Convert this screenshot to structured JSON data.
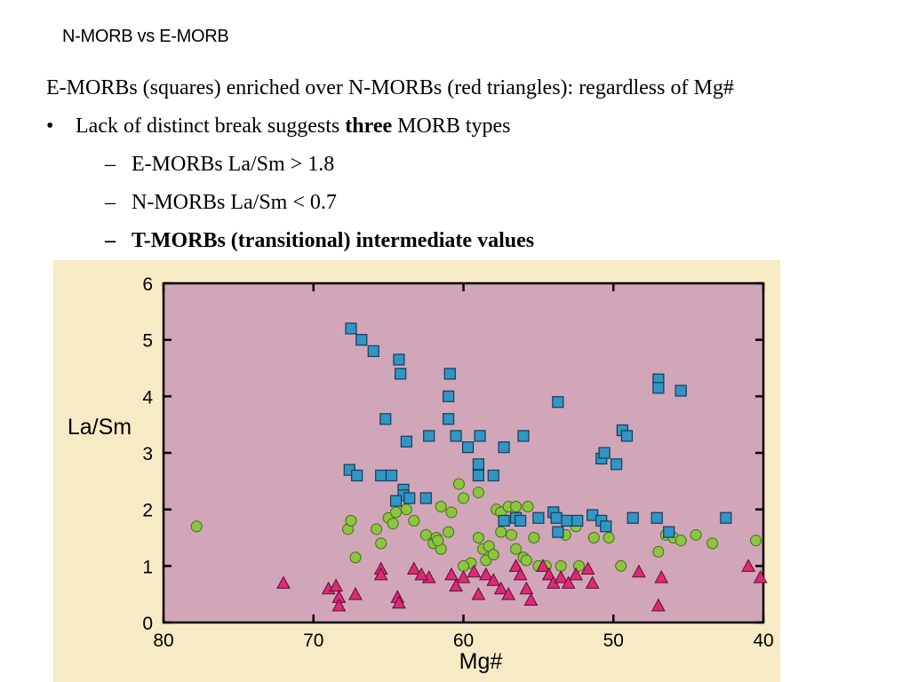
{
  "slide": {
    "title": "N-MORB vs E-MORB",
    "line0": "E-MORBs (squares) enriched over N-MORBs (red triangles): regardless of Mg#",
    "bullet_marker": "•",
    "dash_marker": "–",
    "line1_pre": "Lack of distinct break suggests ",
    "line1_bold": "three",
    "line1_post": " MORB types",
    "line2": "E-MORBs La/Sm > 1.8",
    "line3": "N-MORBs La/Sm < 0.7",
    "line4": "T-MORBs (transitional) intermediate values"
  },
  "colors": {
    "plot_bg": "#d0a6b8",
    "frame_bg": "#f7ebc5",
    "squares": "#2f96c6",
    "circles": "#8cc63e",
    "triangles": "#de2a76"
  },
  "chart_data": {
    "type": "scatter",
    "xlabel": "Mg#",
    "ylabel": "La/Sm",
    "xlim": [
      80,
      40
    ],
    "ylim": [
      0,
      6
    ],
    "xticks": [
      80,
      70,
      60,
      50,
      40
    ],
    "yticks": [
      0,
      1,
      2,
      3,
      4,
      5,
      6
    ],
    "series": [
      {
        "marker": "square",
        "points": [
          [
            67.5,
            5.2
          ],
          [
            66.8,
            5.0
          ],
          [
            66,
            4.8
          ],
          [
            64.3,
            4.65
          ],
          [
            64.2,
            4.4
          ],
          [
            60.9,
            4.4
          ],
          [
            61,
            4.0
          ],
          [
            61,
            3.6
          ],
          [
            65.2,
            3.6
          ],
          [
            63.8,
            3.2
          ],
          [
            62.3,
            3.3
          ],
          [
            60.5,
            3.3
          ],
          [
            59.7,
            3.1
          ],
          [
            58.9,
            3.3
          ],
          [
            59,
            2.8
          ],
          [
            57.3,
            3.1
          ],
          [
            56,
            3.3
          ],
          [
            53.7,
            3.9
          ],
          [
            49.4,
            3.4
          ],
          [
            49.1,
            3.3
          ],
          [
            50.8,
            2.9
          ],
          [
            50.6,
            3.0
          ],
          [
            49.8,
            2.8
          ],
          [
            47,
            4.3
          ],
          [
            47,
            4.15
          ],
          [
            45.5,
            4.1
          ],
          [
            67.6,
            2.7
          ],
          [
            67.1,
            2.6
          ],
          [
            65.5,
            2.6
          ],
          [
            64.8,
            2.6
          ],
          [
            64,
            2.35
          ],
          [
            64,
            2.25
          ],
          [
            63.6,
            2.2
          ],
          [
            62.5,
            2.2
          ],
          [
            64.5,
            2.15
          ],
          [
            59,
            2.6
          ],
          [
            58,
            2.6
          ],
          [
            57.3,
            1.8
          ],
          [
            56.5,
            1.85
          ],
          [
            56.2,
            1.8
          ],
          [
            55,
            1.85
          ],
          [
            54,
            1.95
          ],
          [
            53.8,
            1.85
          ],
          [
            53.1,
            1.8
          ],
          [
            52.4,
            1.8
          ],
          [
            51.4,
            1.9
          ],
          [
            50.8,
            1.8
          ],
          [
            50.5,
            1.7
          ],
          [
            48.7,
            1.85
          ],
          [
            47.1,
            1.85
          ],
          [
            46.3,
            1.6
          ],
          [
            42.5,
            1.85
          ],
          [
            53.7,
            1.6
          ]
        ]
      },
      {
        "marker": "circle",
        "points": [
          [
            77.8,
            1.7
          ],
          [
            67.7,
            1.65
          ],
          [
            67.5,
            1.8
          ],
          [
            67.2,
            1.15
          ],
          [
            65.8,
            1.65
          ],
          [
            65.5,
            1.4
          ],
          [
            65,
            1.85
          ],
          [
            64.7,
            1.75
          ],
          [
            64.5,
            1.95
          ],
          [
            63.8,
            2.0
          ],
          [
            63.3,
            1.8
          ],
          [
            62.5,
            1.55
          ],
          [
            62,
            1.4
          ],
          [
            61.8,
            1.5
          ],
          [
            61.5,
            1.3
          ],
          [
            61,
            1.6
          ],
          [
            60.8,
            1.95
          ],
          [
            60.3,
            2.45
          ],
          [
            60,
            2.2
          ],
          [
            61.5,
            2.05
          ],
          [
            61.7,
            1.45
          ],
          [
            59.5,
            1.05
          ],
          [
            59,
            2.3
          ],
          [
            59,
            1.5
          ],
          [
            58.5,
            1.1
          ],
          [
            58.7,
            1.3
          ],
          [
            58.3,
            1.35
          ],
          [
            58,
            1.2
          ],
          [
            57.8,
            2.0
          ],
          [
            57.5,
            1.95
          ],
          [
            57,
            2.05
          ],
          [
            56.5,
            2.05
          ],
          [
            55.7,
            2.05
          ],
          [
            57.5,
            1.6
          ],
          [
            56.8,
            1.55
          ],
          [
            56.5,
            1.3
          ],
          [
            56,
            1.15
          ],
          [
            55.8,
            1.1
          ],
          [
            55.3,
            1.5
          ],
          [
            55,
            1.0
          ],
          [
            54.5,
            1.0
          ],
          [
            53.5,
            1.0
          ],
          [
            53.2,
            1.55
          ],
          [
            52.5,
            1.7
          ],
          [
            52.3,
            1.0
          ],
          [
            51.3,
            1.5
          ],
          [
            50.3,
            1.5
          ],
          [
            49.5,
            1.0
          ],
          [
            47,
            1.25
          ],
          [
            46.5,
            1.55
          ],
          [
            46,
            1.5
          ],
          [
            45.5,
            1.45
          ],
          [
            44.5,
            1.55
          ],
          [
            43.4,
            1.4
          ],
          [
            40.5,
            1.45
          ],
          [
            60,
            1.0
          ]
        ]
      },
      {
        "marker": "triangle",
        "points": [
          [
            72,
            0.7
          ],
          [
            69,
            0.6
          ],
          [
            68.5,
            0.65
          ],
          [
            68.3,
            0.45
          ],
          [
            68.3,
            0.3
          ],
          [
            67.2,
            0.5
          ],
          [
            65.5,
            0.95
          ],
          [
            65.5,
            0.85
          ],
          [
            64.4,
            0.45
          ],
          [
            64.3,
            0.35
          ],
          [
            63.3,
            0.95
          ],
          [
            62.3,
            0.8
          ],
          [
            60.8,
            0.85
          ],
          [
            60,
            0.8
          ],
          [
            59.3,
            0.9
          ],
          [
            59,
            0.5
          ],
          [
            58.5,
            0.85
          ],
          [
            58,
            0.75
          ],
          [
            57.5,
            0.6
          ],
          [
            57,
            0.5
          ],
          [
            56.5,
            1.0
          ],
          [
            56.2,
            0.85
          ],
          [
            55.8,
            0.6
          ],
          [
            55.5,
            0.4
          ],
          [
            54.7,
            1.0
          ],
          [
            54.3,
            0.85
          ],
          [
            54,
            0.7
          ],
          [
            53.5,
            0.8
          ],
          [
            53,
            0.7
          ],
          [
            52.5,
            0.85
          ],
          [
            51.7,
            0.95
          ],
          [
            51.4,
            0.7
          ],
          [
            48.3,
            0.9
          ],
          [
            46.8,
            0.8
          ],
          [
            47,
            0.3
          ],
          [
            41,
            1.0
          ],
          [
            40.2,
            0.8
          ],
          [
            62.8,
            0.85
          ],
          [
            60.5,
            0.65
          ]
        ]
      }
    ]
  }
}
